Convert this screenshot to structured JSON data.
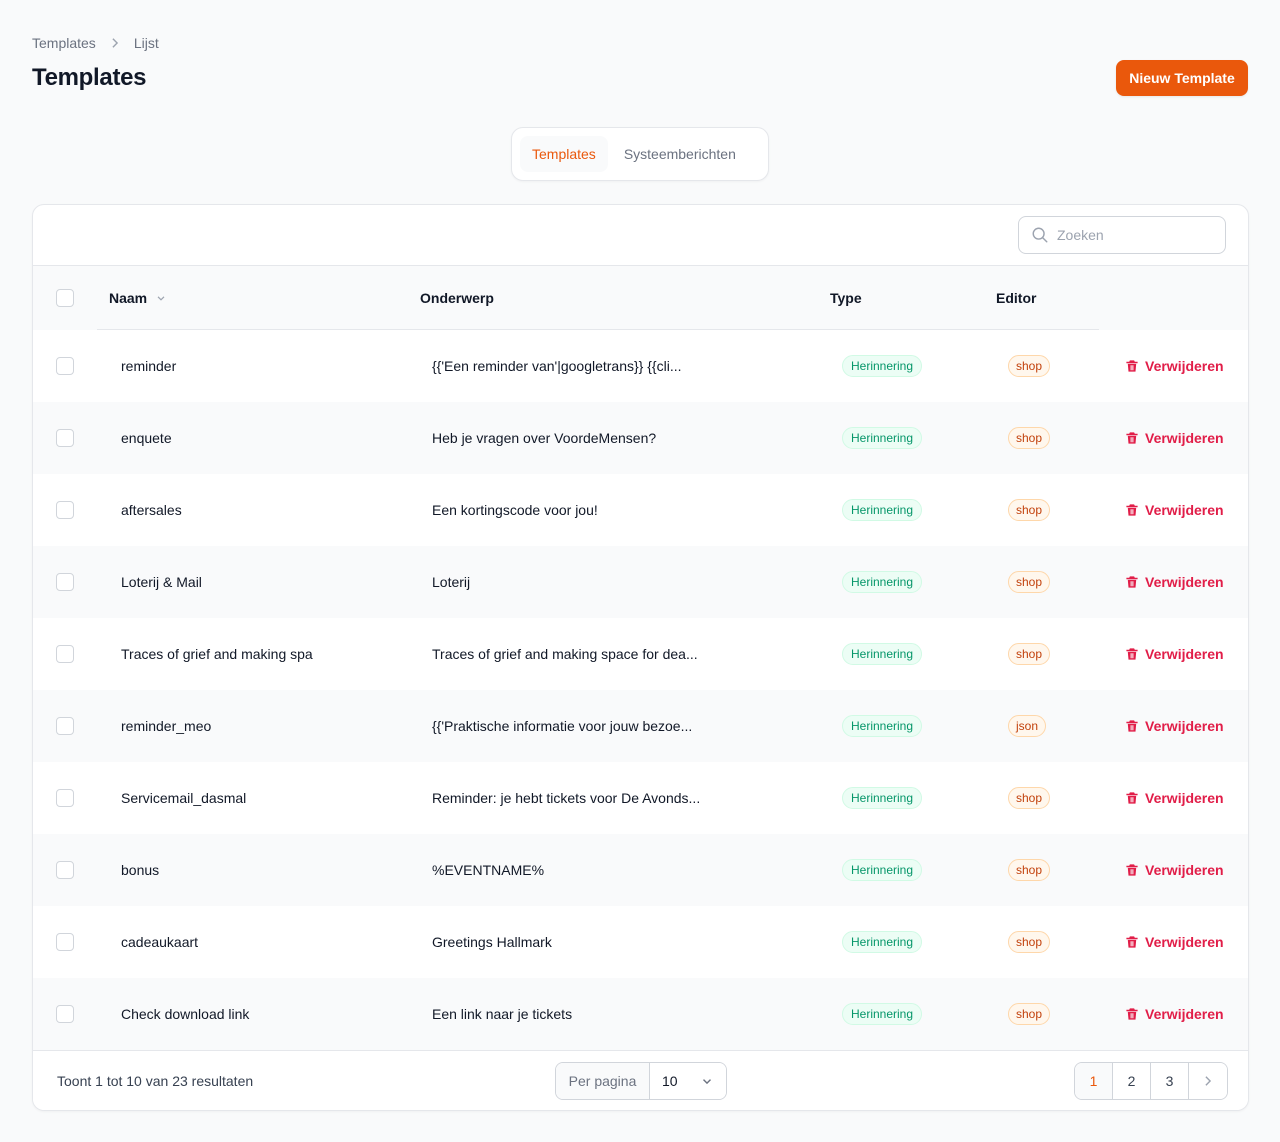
{
  "breadcrumb": {
    "root": "Templates",
    "current": "Lijst"
  },
  "page_title": "Templates",
  "new_button": "Nieuw Template",
  "tabs": [
    {
      "label": "Templates",
      "active": true
    },
    {
      "label": "Systeemberichten",
      "active": false
    }
  ],
  "search": {
    "placeholder": "Zoeken",
    "value": ""
  },
  "columns": {
    "name": "Naam",
    "subject": "Onderwerp",
    "type": "Type",
    "editor": "Editor"
  },
  "delete_label": "Verwijderen",
  "rows": [
    {
      "name": "reminder",
      "subject": "{{'Een reminder van'|googletrans}} {{cli...",
      "type": "Herinnering",
      "editor": "shop"
    },
    {
      "name": "enquete",
      "subject": "Heb je vragen over VoordeMensen?",
      "type": "Herinnering",
      "editor": "shop"
    },
    {
      "name": "aftersales",
      "subject": "Een kortingscode voor jou!",
      "type": "Herinnering",
      "editor": "shop"
    },
    {
      "name": "Loterij & Mail",
      "subject": "Loterij",
      "type": "Herinnering",
      "editor": "shop"
    },
    {
      "name": "Traces of grief and making spa",
      "subject": "Traces of grief and making space for dea...",
      "type": "Herinnering",
      "editor": "shop"
    },
    {
      "name": "reminder_meo",
      "subject": "{{'Praktische informatie voor jouw bezoe...",
      "type": "Herinnering",
      "editor": "json"
    },
    {
      "name": "Servicemail_dasmal",
      "subject": "Reminder: je hebt tickets voor De Avonds...",
      "type": "Herinnering",
      "editor": "shop"
    },
    {
      "name": "bonus",
      "subject": "%EVENTNAME%",
      "type": "Herinnering",
      "editor": "shop"
    },
    {
      "name": "cadeaukaart",
      "subject": "Greetings Hallmark",
      "type": "Herinnering",
      "editor": "shop"
    },
    {
      "name": "Check download link",
      "subject": "Een link naar je tickets",
      "type": "Herinnering",
      "editor": "shop"
    }
  ],
  "footer": {
    "results": "Toont 1 tot 10 van 23 resultaten",
    "per_page_label": "Per pagina",
    "per_page_value": "10",
    "pages": [
      "1",
      "2",
      "3"
    ],
    "current_page": "1"
  },
  "colors": {
    "accent": "#ea580c",
    "danger": "#e11d48",
    "success": "#059669"
  }
}
